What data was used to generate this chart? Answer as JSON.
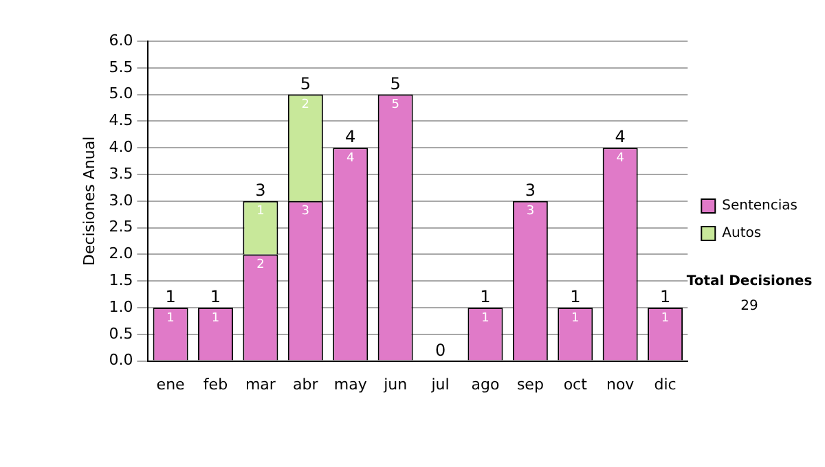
{
  "chart_data": {
    "type": "bar",
    "stacked": true,
    "ylabel": "Decisiones Anual",
    "categories": [
      "ene",
      "feb",
      "mar",
      "abr",
      "may",
      "jun",
      "jul",
      "ago",
      "sep",
      "oct",
      "nov",
      "dic"
    ],
    "series": [
      {
        "name": "Sentencias",
        "color": "#e07ac8",
        "values": [
          1,
          1,
          2,
          3,
          4,
          5,
          0,
          1,
          3,
          1,
          4,
          1
        ],
        "value_labels": [
          "1",
          "1",
          "2",
          "3",
          "4",
          "5",
          null,
          "1",
          "3",
          "1",
          "4",
          "1"
        ]
      },
      {
        "name": "Autos",
        "color": "#c8e89a",
        "values": [
          null,
          null,
          1,
          2,
          null,
          null,
          null,
          null,
          null,
          null,
          null,
          null
        ],
        "value_labels": [
          null,
          null,
          "1",
          "2",
          null,
          null,
          null,
          null,
          null,
          null,
          null,
          null
        ]
      }
    ],
    "totals": [
      "1",
      "1",
      "3",
      "5",
      "4",
      "5",
      "0",
      "1",
      "3",
      "1",
      "4",
      "1"
    ],
    "ylim": [
      0,
      6
    ],
    "yticks": [
      {
        "value": 0,
        "label": "0.0"
      },
      {
        "value": 0.5,
        "label": "0.5"
      },
      {
        "value": 1,
        "label": "1.0"
      },
      {
        "value": 1.5,
        "label": "1.5"
      },
      {
        "value": 2,
        "label": "2.0"
      },
      {
        "value": 2.5,
        "label": "2.5"
      },
      {
        "value": 3,
        "label": "3.0"
      },
      {
        "value": 3.5,
        "label": "3.5"
      },
      {
        "value": 4,
        "label": "4.0"
      },
      {
        "value": 4.5,
        "label": "4.5"
      },
      {
        "value": 5,
        "label": "5.0"
      },
      {
        "value": 5.5,
        "label": "5.5"
      },
      {
        "value": 6,
        "label": "6.0"
      }
    ],
    "grid": "y",
    "legend": "right",
    "annotations": [
      "Total Decisiones",
      "29"
    ]
  }
}
